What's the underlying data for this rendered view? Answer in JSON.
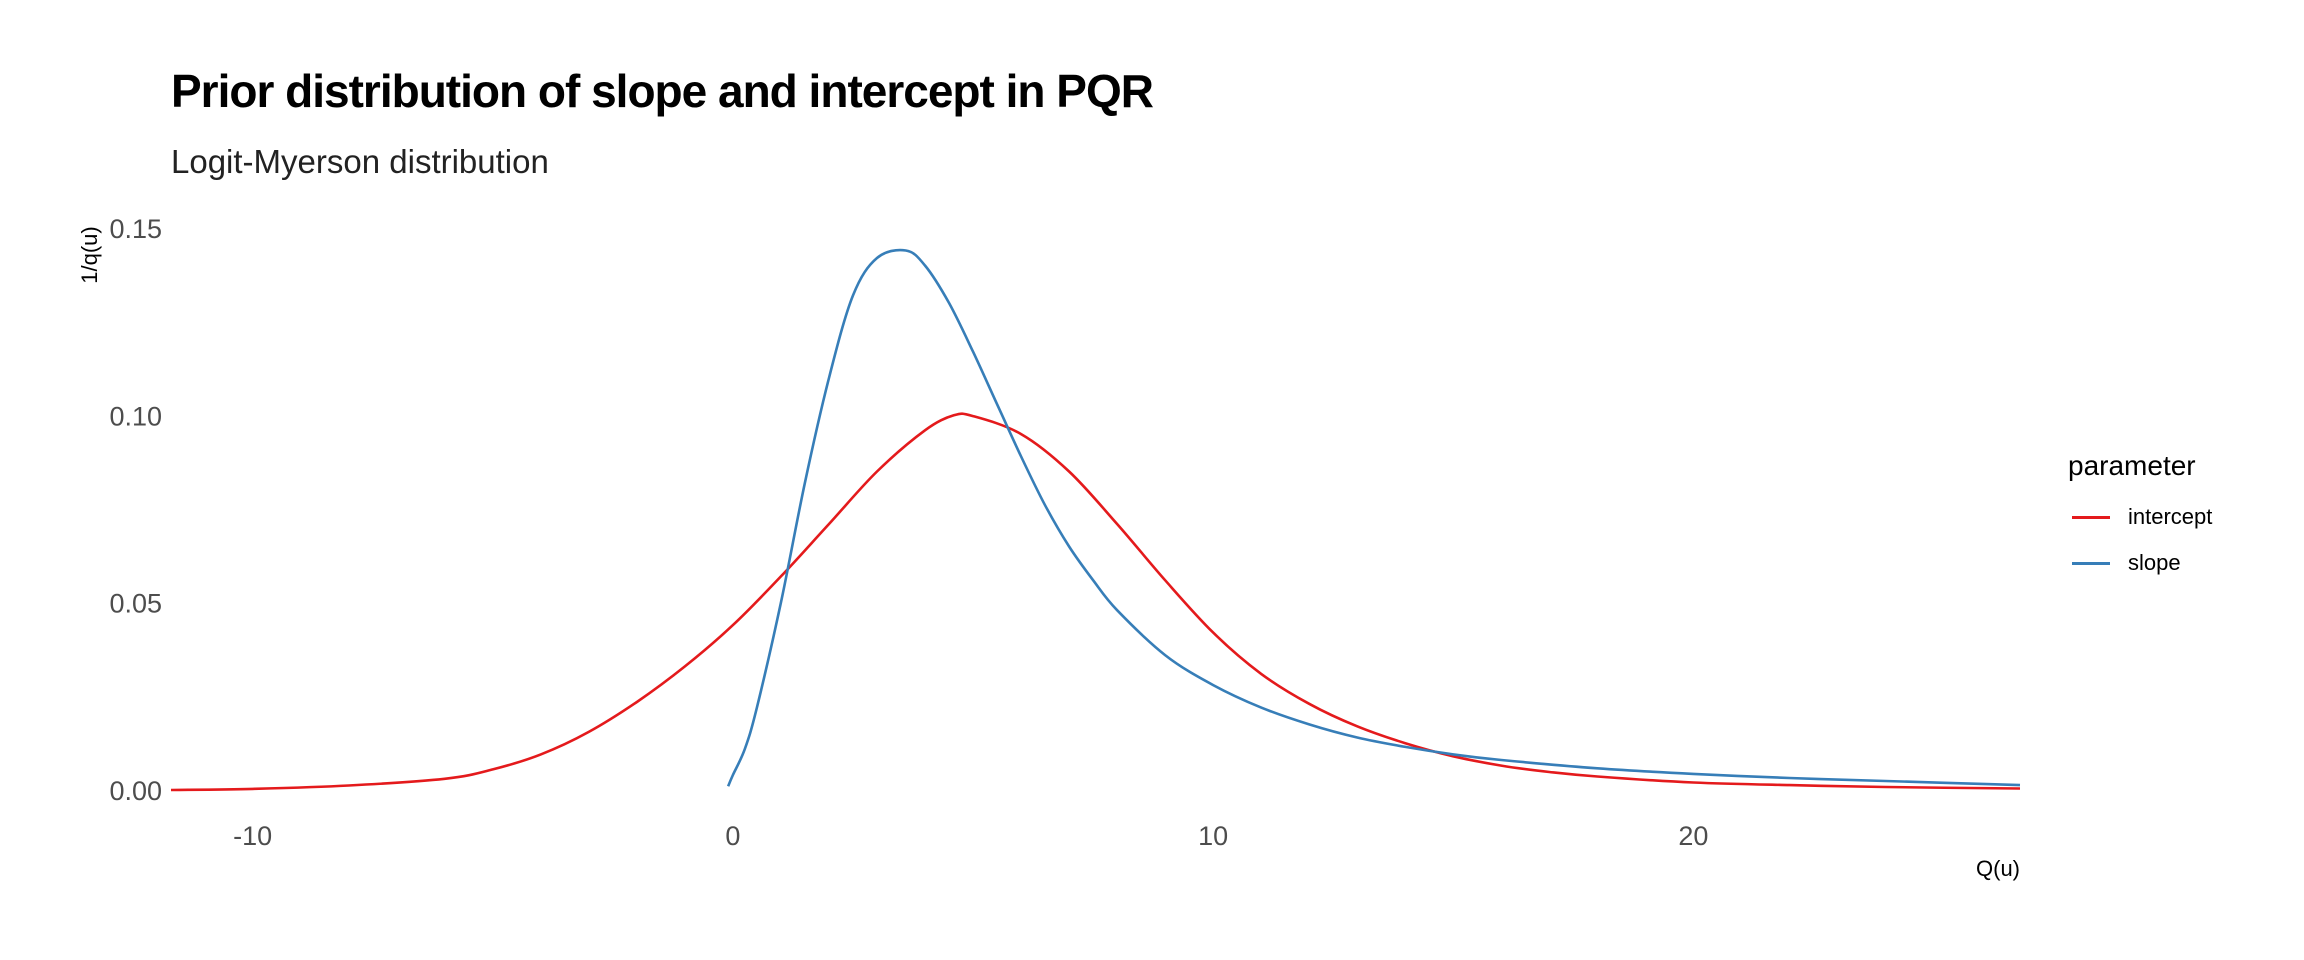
{
  "chart_data": {
    "type": "line",
    "title": "Prior distribution of slope and intercept in PQR",
    "subtitle": "Logit-Myerson distribution",
    "xlabel": "Q(u)",
    "ylabel": "1/q(u)",
    "xlim": [
      -11.7,
      26.8
    ],
    "ylim": [
      0,
      0.15
    ],
    "x_ticks": [
      -10,
      0,
      10,
      20
    ],
    "x_tick_labels": [
      "-10",
      "0",
      "10",
      "20"
    ],
    "y_ticks": [
      0,
      0.05,
      0.1,
      0.15
    ],
    "y_tick_labels": [
      "0.00",
      "0.05",
      "0.10",
      "0.15"
    ],
    "grid": false,
    "legend": {
      "title": "parameter",
      "position": "right"
    },
    "series": [
      {
        "name": "intercept",
        "color": "#e41a1c",
        "x": [
          -11.7,
          -10,
          -8,
          -6,
          -5,
          -4,
          -3,
          -2,
          -1,
          0,
          1,
          2,
          3,
          4,
          4.6,
          5,
          6,
          7,
          8,
          9,
          10,
          11,
          12,
          13,
          14,
          15,
          16,
          17,
          18,
          20,
          22,
          24,
          26.8
        ],
        "y": [
          0.0,
          0.0003,
          0.0012,
          0.003,
          0.0055,
          0.0095,
          0.0155,
          0.0235,
          0.033,
          0.044,
          0.057,
          0.071,
          0.085,
          0.096,
          0.1,
          0.0998,
          0.095,
          0.085,
          0.071,
          0.056,
          0.042,
          0.031,
          0.023,
          0.017,
          0.0125,
          0.009,
          0.0065,
          0.0048,
          0.0036,
          0.002,
          0.0013,
          0.0008,
          0.0004
        ]
      },
      {
        "name": "slope",
        "color": "#377eb8",
        "x": [
          -0.1,
          0,
          0.25,
          0.5,
          1,
          1.5,
          2,
          2.5,
          3,
          3.6,
          4,
          4.5,
          5,
          5.5,
          6,
          6.5,
          7,
          7.5,
          8,
          9,
          10,
          11,
          12,
          13,
          14,
          15,
          16,
          18,
          20,
          22,
          24,
          26.8
        ],
        "y": [
          0.001,
          0.004,
          0.011,
          0.022,
          0.05,
          0.082,
          0.11,
          0.132,
          0.142,
          0.144,
          0.14,
          0.13,
          0.117,
          0.103,
          0.089,
          0.076,
          0.065,
          0.056,
          0.048,
          0.036,
          0.028,
          0.022,
          0.0175,
          0.014,
          0.0115,
          0.0095,
          0.008,
          0.0058,
          0.0043,
          0.0032,
          0.0024,
          0.0013
        ]
      }
    ]
  }
}
